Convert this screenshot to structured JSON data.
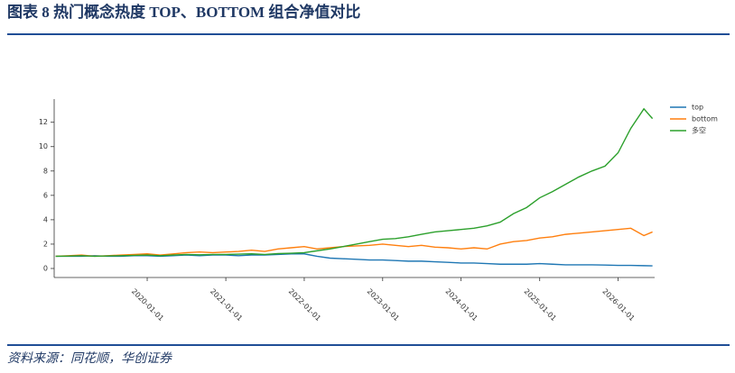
{
  "header": {
    "title": "图表 8   热门概念热度 TOP、BOTTOM 组合净值对比"
  },
  "chart_data": {
    "type": "line",
    "x": [
      "2018-11-01",
      "2019-01-01",
      "2019-03-01",
      "2019-05-01",
      "2019-07-01",
      "2019-09-01",
      "2019-11-01",
      "2020-01-01",
      "2020-03-01",
      "2020-05-01",
      "2020-07-01",
      "2020-09-01",
      "2020-11-01",
      "2021-01-01",
      "2021-03-01",
      "2021-05-01",
      "2021-07-01",
      "2021-09-01",
      "2021-11-01",
      "2022-01-01",
      "2022-03-01",
      "2022-05-01",
      "2022-07-01",
      "2022-09-01",
      "2022-11-01",
      "2023-01-01",
      "2023-03-01",
      "2023-05-01",
      "2023-07-01",
      "2023-09-01",
      "2023-11-01",
      "2024-01-01",
      "2024-03-01",
      "2024-05-01",
      "2024-07-01",
      "2024-09-01",
      "2024-11-01",
      "2025-01-01",
      "2025-03-01",
      "2025-05-01",
      "2025-07-01",
      "2025-09-01",
      "2025-11-01",
      "2026-01-01",
      "2026-03-01",
      "2026-05-01",
      "2026-06-10"
    ],
    "series": [
      {
        "name": "top",
        "color": "#1f77b4",
        "values": [
          1.0,
          1.0,
          1.0,
          1.05,
          1.0,
          1.0,
          1.05,
          1.05,
          1.0,
          1.05,
          1.1,
          1.05,
          1.1,
          1.1,
          1.05,
          1.1,
          1.1,
          1.15,
          1.2,
          1.2,
          1.0,
          0.85,
          0.8,
          0.75,
          0.7,
          0.7,
          0.65,
          0.6,
          0.6,
          0.55,
          0.5,
          0.45,
          0.45,
          0.4,
          0.35,
          0.35,
          0.35,
          0.4,
          0.35,
          0.3,
          0.3,
          0.3,
          0.28,
          0.25,
          0.25,
          0.23,
          0.22
        ]
      },
      {
        "name": "bottom",
        "color": "#ff7f0e",
        "values": [
          1.0,
          1.05,
          1.1,
          1.0,
          1.05,
          1.1,
          1.15,
          1.2,
          1.1,
          1.2,
          1.3,
          1.35,
          1.3,
          1.35,
          1.4,
          1.5,
          1.4,
          1.6,
          1.7,
          1.8,
          1.6,
          1.7,
          1.8,
          1.85,
          1.9,
          2.0,
          1.9,
          1.8,
          1.9,
          1.75,
          1.7,
          1.6,
          1.7,
          1.6,
          2.0,
          2.2,
          2.3,
          2.5,
          2.6,
          2.8,
          2.9,
          3.0,
          3.1,
          3.2,
          3.3,
          2.7,
          3.0
        ]
      },
      {
        "name": "多空",
        "color": "#2ca02c",
        "values": [
          1.0,
          1.02,
          1.05,
          1.0,
          1.03,
          1.05,
          1.08,
          1.1,
          1.05,
          1.1,
          1.15,
          1.12,
          1.15,
          1.15,
          1.18,
          1.2,
          1.15,
          1.22,
          1.25,
          1.3,
          1.45,
          1.6,
          1.8,
          2.0,
          2.2,
          2.4,
          2.45,
          2.6,
          2.8,
          3.0,
          3.1,
          3.2,
          3.3,
          3.5,
          3.8,
          4.5,
          5.0,
          5.8,
          6.3,
          6.9,
          7.5,
          8.0,
          8.4,
          9.5,
          11.5,
          13.1,
          12.3
        ]
      }
    ],
    "xlim": [
      "2018-10-25",
      "2026-06-20"
    ],
    "xticks": [
      "2020-01-01",
      "2021-01-01",
      "2022-01-01",
      "2023-01-01",
      "2024-01-01",
      "2025-01-01",
      "2026-01-01"
    ],
    "ylim": [
      -0.74,
      13.9
    ],
    "yticks": [
      0,
      2,
      4,
      6,
      8,
      10,
      12
    ],
    "legend": "upper right"
  },
  "footer": {
    "source": "资料来源：同花顺，华创证券"
  }
}
